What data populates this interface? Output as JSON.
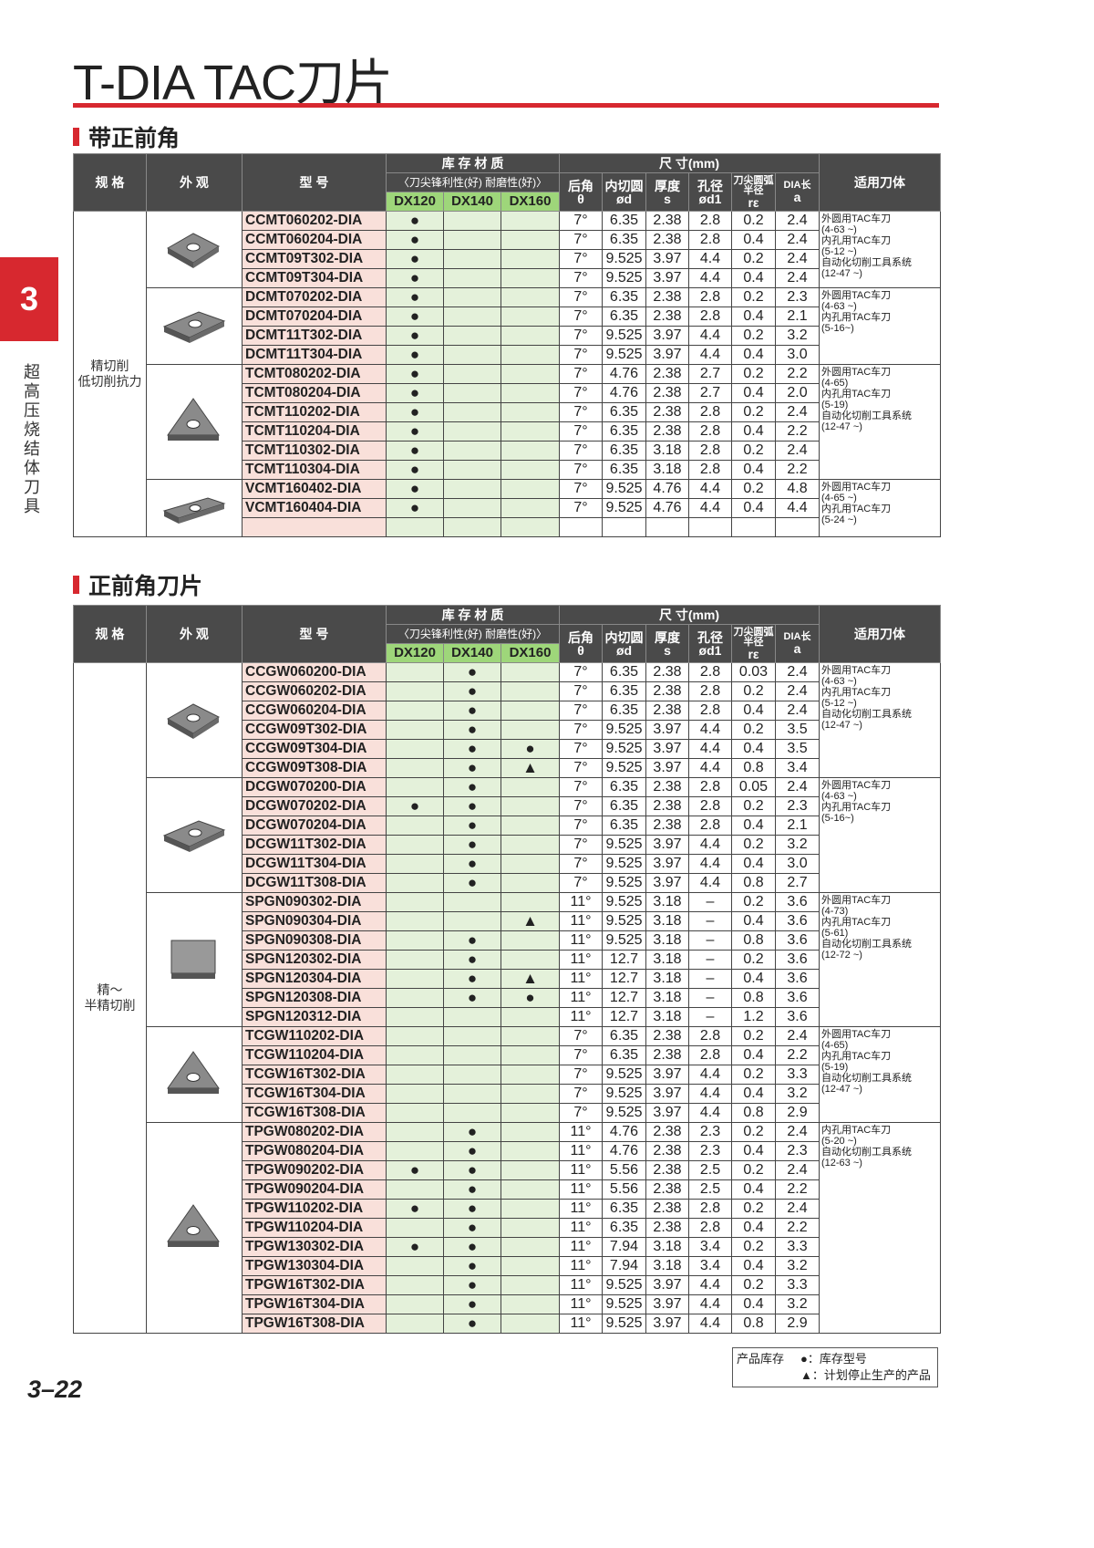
{
  "page": {
    "title": "T-DIA TAC刀片",
    "tab_number": "3",
    "side_label": "超高压烧结体刀具",
    "page_number": "3–22",
    "accent_color": "#d7282f"
  },
  "header": {
    "spec": "规 格",
    "appearance": "外 观",
    "model": "型 号",
    "stock_material": "库 存 材 质",
    "sharpness": "刀尖锋利性(好)",
    "wear": "耐磨性(好)",
    "grades": [
      "DX120",
      "DX140",
      "DX160"
    ],
    "dimensions": "尺 寸(mm)",
    "dims": [
      [
        "后角",
        "θ"
      ],
      [
        "内切圆",
        "ød"
      ],
      [
        "厚度",
        "s"
      ],
      [
        "孔径",
        "ød1"
      ],
      [
        "刀尖圆弧半径",
        "rε"
      ],
      [
        "DIA长",
        "a"
      ]
    ],
    "tool": "适用刀体"
  },
  "tables": [
    {
      "section": "带正前角",
      "spec": "精切削\n低切削抗力",
      "groups": [
        {
          "shape": "rhombus-80",
          "tools": [
            "外圆用TAC车刀",
            "(4-63 ~)",
            "内孔用TAC车刀",
            "(5-12 ~)",
            "自动化切削工具系统",
            "(12-47 ~)"
          ],
          "rows": [
            [
              "CCMT060202-DIA",
              "●",
              "",
              "",
              "7°",
              "6.35",
              "2.38",
              "2.8",
              "0.2",
              "2.4"
            ],
            [
              "CCMT060204-DIA",
              "●",
              "",
              "",
              "7°",
              "6.35",
              "2.38",
              "2.8",
              "0.4",
              "2.4"
            ],
            [
              "CCMT09T302-DIA",
              "●",
              "",
              "",
              "7°",
              "9.525",
              "3.97",
              "4.4",
              "0.2",
              "2.4"
            ],
            [
              "CCMT09T304-DIA",
              "●",
              "",
              "",
              "7°",
              "9.525",
              "3.97",
              "4.4",
              "0.4",
              "2.4"
            ]
          ]
        },
        {
          "shape": "rhombus-55",
          "tools": [
            "外圆用TAC车刀",
            "(4-63 ~)",
            "内孔用TAC车刀",
            "(5-16~)"
          ],
          "rows": [
            [
              "DCMT070202-DIA",
              "●",
              "",
              "",
              "7°",
              "6.35",
              "2.38",
              "2.8",
              "0.2",
              "2.3"
            ],
            [
              "DCMT070204-DIA",
              "●",
              "",
              "",
              "7°",
              "6.35",
              "2.38",
              "2.8",
              "0.4",
              "2.1"
            ],
            [
              "DCMT11T302-DIA",
              "●",
              "",
              "",
              "7°",
              "9.525",
              "3.97",
              "4.4",
              "0.2",
              "3.2"
            ],
            [
              "DCMT11T304-DIA",
              "●",
              "",
              "",
              "7°",
              "9.525",
              "3.97",
              "4.4",
              "0.4",
              "3.0"
            ]
          ]
        },
        {
          "shape": "triangle",
          "tools": [
            "外圆用TAC车刀",
            "(4-65)",
            "内孔用TAC车刀",
            "(5-19)",
            "自动化切削工具系统",
            "(12-47 ~)"
          ],
          "rows": [
            [
              "TCMT080202-DIA",
              "●",
              "",
              "",
              "7°",
              "4.76",
              "2.38",
              "2.7",
              "0.2",
              "2.2"
            ],
            [
              "TCMT080204-DIA",
              "●",
              "",
              "",
              "7°",
              "4.76",
              "2.38",
              "2.7",
              "0.4",
              "2.0"
            ],
            [
              "TCMT110202-DIA",
              "●",
              "",
              "",
              "7°",
              "6.35",
              "2.38",
              "2.8",
              "0.2",
              "2.4"
            ],
            [
              "TCMT110204-DIA",
              "●",
              "",
              "",
              "7°",
              "6.35",
              "2.38",
              "2.8",
              "0.4",
              "2.2"
            ],
            [
              "TCMT110302-DIA",
              "●",
              "",
              "",
              "7°",
              "6.35",
              "3.18",
              "2.8",
              "0.2",
              "2.4"
            ],
            [
              "TCMT110304-DIA",
              "●",
              "",
              "",
              "7°",
              "6.35",
              "3.18",
              "2.8",
              "0.4",
              "2.2"
            ]
          ]
        },
        {
          "shape": "rhombus-35",
          "tools": [
            "外圆用TAC车刀",
            "(4-65 ~)",
            "内孔用TAC车刀",
            "(5-24 ~)"
          ],
          "blank_rows": 2,
          "rows": [
            [
              "VCMT160402-DIA",
              "●",
              "",
              "",
              "7°",
              "9.525",
              "4.76",
              "4.4",
              "0.2",
              "4.8"
            ],
            [
              "VCMT160404-DIA",
              "●",
              "",
              "",
              "7°",
              "9.525",
              "4.76",
              "4.4",
              "0.4",
              "4.4"
            ]
          ]
        }
      ]
    },
    {
      "section": "正前角刀片",
      "spec": "精～\n半精切削",
      "groups": [
        {
          "shape": "rhombus-80",
          "tools": [
            "外圆用TAC车刀",
            "(4-63 ~)",
            "内孔用TAC车刀",
            "(5-12 ~)",
            "自动化切削工具系统",
            "(12-47 ~)"
          ],
          "rows": [
            [
              "CCGW060200-DIA",
              "",
              "●",
              "",
              "7°",
              "6.35",
              "2.38",
              "2.8",
              "0.03",
              "2.4"
            ],
            [
              "CCGW060202-DIA",
              "",
              "●",
              "",
              "7°",
              "6.35",
              "2.38",
              "2.8",
              "0.2",
              "2.4"
            ],
            [
              "CCGW060204-DIA",
              "",
              "●",
              "",
              "7°",
              "6.35",
              "2.38",
              "2.8",
              "0.4",
              "2.4"
            ],
            [
              "CCGW09T302-DIA",
              "",
              "●",
              "",
              "7°",
              "9.525",
              "3.97",
              "4.4",
              "0.2",
              "3.5"
            ],
            [
              "CCGW09T304-DIA",
              "",
              "●",
              "●",
              "7°",
              "9.525",
              "3.97",
              "4.4",
              "0.4",
              "3.5"
            ],
            [
              "CCGW09T308-DIA",
              "",
              "●",
              "▲",
              "7°",
              "9.525",
              "3.97",
              "4.4",
              "0.8",
              "3.4"
            ]
          ]
        },
        {
          "shape": "rhombus-55",
          "tools": [
            "外圆用TAC车刀",
            "(4-63 ~)",
            "内孔用TAC车刀",
            "(5-16~)"
          ],
          "rows": [
            [
              "DCGW070200-DIA",
              "",
              "●",
              "",
              "7°",
              "6.35",
              "2.38",
              "2.8",
              "0.05",
              "2.4"
            ],
            [
              "DCGW070202-DIA",
              "●",
              "●",
              "",
              "7°",
              "6.35",
              "2.38",
              "2.8",
              "0.2",
              "2.3"
            ],
            [
              "DCGW070204-DIA",
              "",
              "●",
              "",
              "7°",
              "6.35",
              "2.38",
              "2.8",
              "0.4",
              "2.1"
            ],
            [
              "DCGW11T302-DIA",
              "",
              "●",
              "",
              "7°",
              "9.525",
              "3.97",
              "4.4",
              "0.2",
              "3.2"
            ],
            [
              "DCGW11T304-DIA",
              "",
              "●",
              "",
              "7°",
              "9.525",
              "3.97",
              "4.4",
              "0.4",
              "3.0"
            ],
            [
              "DCGW11T308-DIA",
              "",
              "●",
              "",
              "7°",
              "9.525",
              "3.97",
              "4.4",
              "0.8",
              "2.7"
            ]
          ]
        },
        {
          "shape": "square",
          "tools": [
            "外圆用TAC车刀",
            "(4-73)",
            "内孔用TAC车刀",
            "(5-61)",
            "自动化切削工具系统",
            "(12-72 ~)"
          ],
          "rows": [
            [
              "SPGN090302-DIA",
              "",
              "",
              "",
              "11°",
              "9.525",
              "3.18",
              "–",
              "0.2",
              "3.6"
            ],
            [
              "SPGN090304-DIA",
              "",
              "",
              "▲",
              "11°",
              "9.525",
              "3.18",
              "–",
              "0.4",
              "3.6"
            ],
            [
              "SPGN090308-DIA",
              "",
              "●",
              "",
              "11°",
              "9.525",
              "3.18",
              "–",
              "0.8",
              "3.6"
            ],
            [
              "SPGN120302-DIA",
              "",
              "●",
              "",
              "11°",
              "12.7",
              "3.18",
              "–",
              "0.2",
              "3.6"
            ],
            [
              "SPGN120304-DIA",
              "",
              "●",
              "▲",
              "11°",
              "12.7",
              "3.18",
              "–",
              "0.4",
              "3.6"
            ],
            [
              "SPGN120308-DIA",
              "",
              "●",
              "●",
              "11°",
              "12.7",
              "3.18",
              "–",
              "0.8",
              "3.6"
            ],
            [
              "SPGN120312-DIA",
              "",
              "",
              "",
              "11°",
              "12.7",
              "3.18",
              "–",
              "1.2",
              "3.6"
            ]
          ]
        },
        {
          "shape": "triangle",
          "tools": [
            "外圆用TAC车刀",
            "(4-65)",
            "内孔用TAC车刀",
            "(5-19)",
            "自动化切削工具系统",
            "(12-47 ~)"
          ],
          "rows": [
            [
              "TCGW110202-DIA",
              "",
              "",
              "",
              "7°",
              "6.35",
              "2.38",
              "2.8",
              "0.2",
              "2.4"
            ],
            [
              "TCGW110204-DIA",
              "",
              "",
              "",
              "7°",
              "6.35",
              "2.38",
              "2.8",
              "0.4",
              "2.2"
            ],
            [
              "TCGW16T302-DIA",
              "",
              "",
              "",
              "7°",
              "9.525",
              "3.97",
              "4.4",
              "0.2",
              "3.3"
            ],
            [
              "TCGW16T304-DIA",
              "",
              "",
              "",
              "7°",
              "9.525",
              "3.97",
              "4.4",
              "0.4",
              "3.2"
            ],
            [
              "TCGW16T308-DIA",
              "",
              "",
              "",
              "7°",
              "9.525",
              "3.97",
              "4.4",
              "0.8",
              "2.9"
            ]
          ]
        },
        {
          "shape": "triangle",
          "tools": [
            "内孔用TAC车刀",
            "(5-20 ~)",
            "自动化切削工具系统",
            "(12-63 ~)"
          ],
          "rows": [
            [
              "TPGW080202-DIA",
              "",
              "●",
              "",
              "11°",
              "4.76",
              "2.38",
              "2.3",
              "0.2",
              "2.4"
            ],
            [
              "TPGW080204-DIA",
              "",
              "●",
              "",
              "11°",
              "4.76",
              "2.38",
              "2.3",
              "0.4",
              "2.3"
            ],
            [
              "TPGW090202-DIA",
              "●",
              "●",
              "",
              "11°",
              "5.56",
              "2.38",
              "2.5",
              "0.2",
              "2.4"
            ],
            [
              "TPGW090204-DIA",
              "",
              "●",
              "",
              "11°",
              "5.56",
              "2.38",
              "2.5",
              "0.4",
              "2.2"
            ],
            [
              "TPGW110202-DIA",
              "●",
              "●",
              "",
              "11°",
              "6.35",
              "2.38",
              "2.8",
              "0.2",
              "2.4"
            ],
            [
              "TPGW110204-DIA",
              "",
              "●",
              "",
              "11°",
              "6.35",
              "2.38",
              "2.8",
              "0.4",
              "2.2"
            ],
            [
              "TPGW130302-DIA",
              "●",
              "●",
              "",
              "11°",
              "7.94",
              "3.18",
              "3.4",
              "0.2",
              "3.3"
            ],
            [
              "TPGW130304-DIA",
              "",
              "●",
              "",
              "11°",
              "7.94",
              "3.18",
              "3.4",
              "0.4",
              "3.2"
            ],
            [
              "TPGW16T302-DIA",
              "",
              "●",
              "",
              "11°",
              "9.525",
              "3.97",
              "4.4",
              "0.2",
              "3.3"
            ],
            [
              "TPGW16T304-DIA",
              "",
              "●",
              "",
              "11°",
              "9.525",
              "3.97",
              "4.4",
              "0.4",
              "3.2"
            ],
            [
              "TPGW16T308-DIA",
              "",
              "●",
              "",
              "11°",
              "9.525",
              "3.97",
              "4.4",
              "0.8",
              "2.9"
            ]
          ]
        }
      ]
    }
  ],
  "legend": {
    "label": "产品库存",
    "stock": "●：库存型号",
    "discontinued": "▲：计划停止生产的产品"
  },
  "colors": {
    "header_bg": "#4a4a4a",
    "grade_header": "#9ed67a",
    "grade_cell": "#e4f1da",
    "model_cell": "#f9e0da"
  }
}
